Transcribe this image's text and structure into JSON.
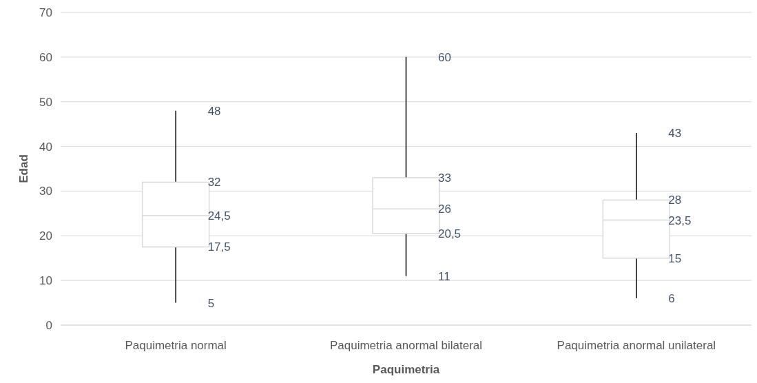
{
  "chart_data": {
    "type": "box",
    "xlabel": "Paquimetria",
    "ylabel": "Edad",
    "categories": [
      "Paquimetria normal",
      "Paquimetria anormal bilateral",
      "Paquimetria anormal unilateral"
    ],
    "boxes": [
      {
        "low": 5,
        "q1": 17.5,
        "median": 24.5,
        "q3": 32,
        "high": 48
      },
      {
        "low": 11,
        "q1": 20.5,
        "median": 26,
        "q3": 33,
        "high": 60
      },
      {
        "low": 6,
        "q1": 15,
        "median": 23.5,
        "q3": 28,
        "high": 43
      }
    ],
    "annotations": [
      {
        "text": "48",
        "x": "Paquimetria normal",
        "y": 48
      },
      {
        "text": "32",
        "x": "Paquimetria normal",
        "y": 32
      },
      {
        "text": "24,5",
        "x": "Paquimetria normal",
        "y": 24.5
      },
      {
        "text": "17,5",
        "x": "Paquimetria normal",
        "y": 17.5
      },
      {
        "text": "5",
        "x": "Paquimetria normal",
        "y": 5
      },
      {
        "text": "60",
        "x": "Paquimetria anormal bilateral",
        "y": 60
      },
      {
        "text": "33",
        "x": "Paquimetria anormal bilateral",
        "y": 33
      },
      {
        "text": "26",
        "x": "Paquimetria anormal bilateral",
        "y": 26
      },
      {
        "text": "20,5",
        "x": "Paquimetria anormal bilateral",
        "y": 20.5
      },
      {
        "text": "11",
        "x": "Paquimetria anormal bilateral",
        "y": 11
      },
      {
        "text": "43",
        "x": "Paquimetria anormal unilateral",
        "y": 43
      },
      {
        "text": "28",
        "x": "Paquimetria anormal unilateral",
        "y": 28
      },
      {
        "text": "23,5",
        "x": "Paquimetria anormal unilateral",
        "y": 23.5
      },
      {
        "text": "15",
        "x": "Paquimetria anormal unilateral",
        "y": 15
      },
      {
        "text": "6",
        "x": "Paquimetria anormal unilateral",
        "y": 6
      }
    ],
    "ylim": [
      0,
      70
    ],
    "yticks": [
      0,
      10,
      20,
      30,
      40,
      50,
      60,
      70
    ],
    "grid": "y"
  }
}
